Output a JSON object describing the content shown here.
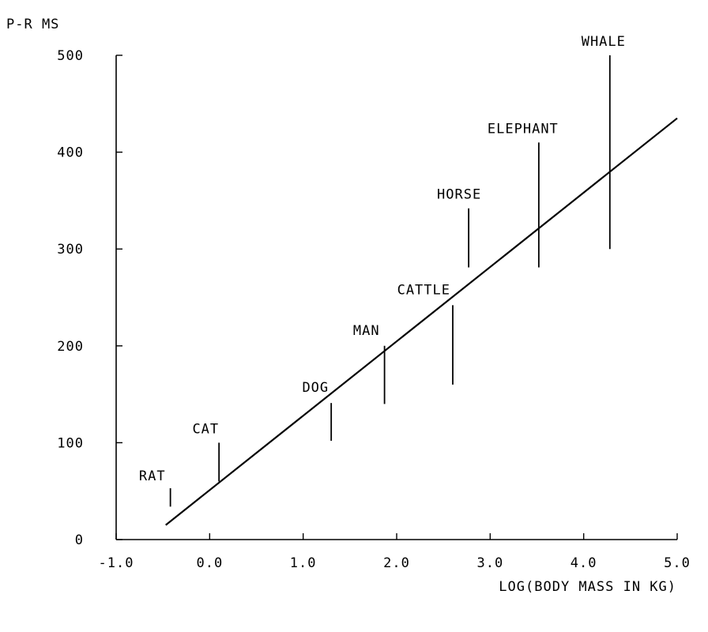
{
  "chart_data": {
    "type": "scatter",
    "title": "",
    "ylabel": "P-R MS",
    "xlabel": "LOG(BODY MASS IN KG)",
    "xlim": [
      -1.0,
      5.0
    ],
    "ylim": [
      0,
      500
    ],
    "x_ticks": [
      -1.0,
      0.0,
      1.0,
      2.0,
      3.0,
      4.0,
      5.0
    ],
    "x_tick_labels": [
      "-1.0",
      "0.0",
      "1.0",
      "2.0",
      "3.0",
      "4.0",
      "5.0"
    ],
    "y_ticks": [
      0,
      100,
      200,
      300,
      400,
      500
    ],
    "y_tick_labels": [
      "0",
      "100",
      "200",
      "300",
      "400",
      "500"
    ],
    "grid": false,
    "series": [
      {
        "type": "range",
        "points": [
          {
            "label": "RAT",
            "x": -0.42,
            "y_low": 34,
            "y_high": 53
          },
          {
            "label": "CAT",
            "x": 0.1,
            "y_low": 60,
            "y_high": 100
          },
          {
            "label": "DOG",
            "x": 1.3,
            "y_low": 102,
            "y_high": 141
          },
          {
            "label": "MAN",
            "x": 1.87,
            "y_low": 140,
            "y_high": 200
          },
          {
            "label": "CATTLE",
            "x": 2.6,
            "y_low": 160,
            "y_high": 242
          },
          {
            "label": "HORSE",
            "x": 2.77,
            "y_low": 281,
            "y_high": 342
          },
          {
            "label": "ELEPHANT",
            "x": 3.52,
            "y_low": 281,
            "y_high": 410
          },
          {
            "label": "WHALE",
            "x": 4.28,
            "y_low": 300,
            "y_high": 500
          }
        ]
      },
      {
        "type": "line",
        "x": [
          -0.47,
          5.0
        ],
        "y": [
          15,
          435
        ]
      }
    ]
  }
}
